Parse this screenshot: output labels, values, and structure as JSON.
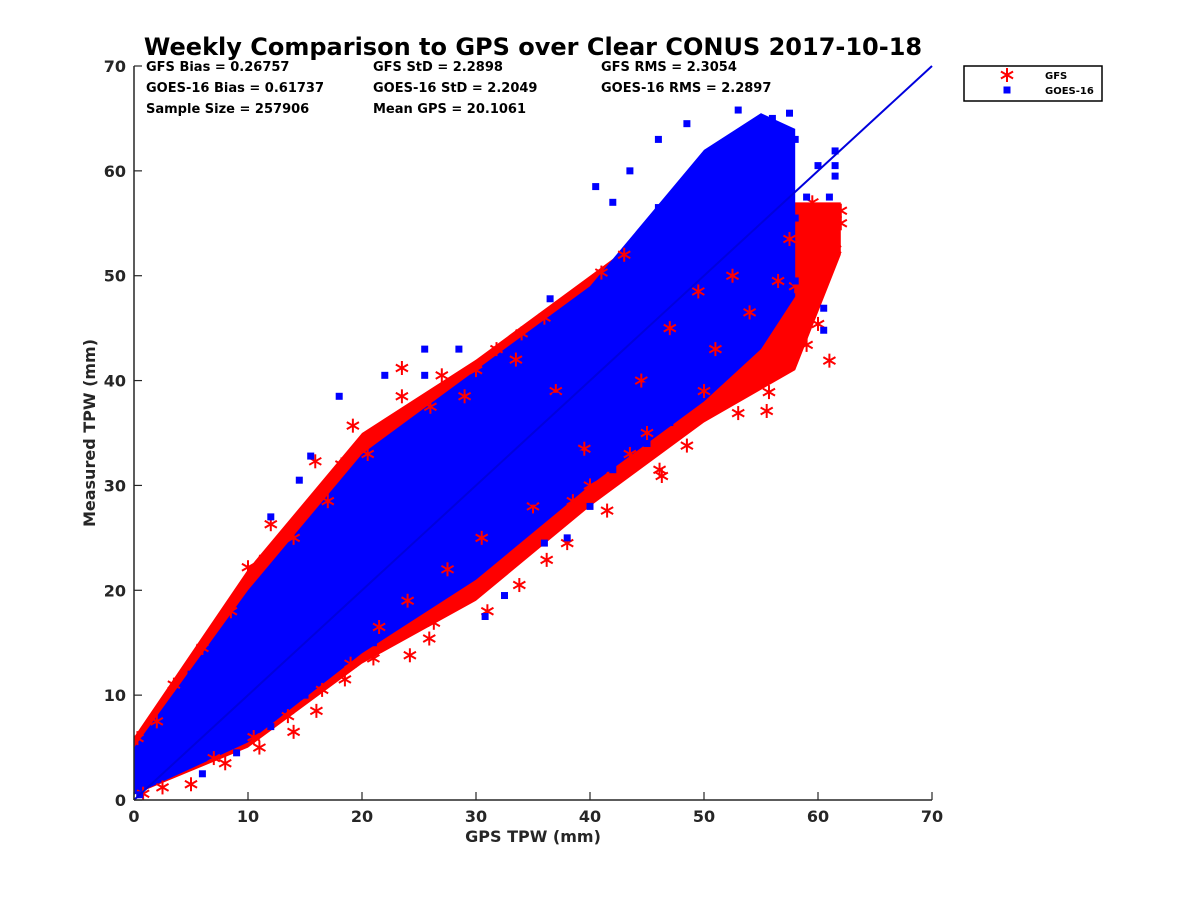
{
  "chart_data": {
    "type": "scatter",
    "title": "Weekly Comparison to GPS over Clear CONUS 2017-10-18",
    "xlabel": "GPS TPW (mm)",
    "ylabel": "Measured TPW (mm)",
    "xlim": [
      0,
      70
    ],
    "ylim": [
      0,
      70
    ],
    "xticks": [
      "0",
      "10",
      "20",
      "30",
      "40",
      "50",
      "60",
      "70"
    ],
    "yticks": [
      "0",
      "10",
      "20",
      "30",
      "40",
      "50",
      "60",
      "70"
    ],
    "grid": false,
    "legend_position": "top-right outside plot",
    "stats": [
      [
        "GFS Bias = 0.26757",
        "GFS StD = 2.2898",
        "GFS RMS = 2.3054"
      ],
      [
        "GOES-16 Bias = 0.61737",
        "GOES-16 StD = 2.2049",
        "GOES-16 RMS = 2.2897"
      ],
      [
        "Sample Size = 257906",
        "Mean GPS = 20.1061"
      ]
    ],
    "reference_line": {
      "x": [
        0,
        70
      ],
      "y": [
        0,
        70
      ],
      "color": "#0000dd"
    },
    "series": [
      {
        "name": "GFS",
        "marker": "asterisk",
        "color": "#ff0000",
        "points": [
          [
            0.3,
            5.9
          ],
          [
            0.8,
            0.6
          ],
          [
            2.5,
            1.2
          ],
          [
            5.0,
            1.5
          ],
          [
            8.0,
            3.5
          ],
          [
            11.0,
            5.0
          ],
          [
            14.0,
            6.5
          ],
          [
            16.0,
            8.5
          ],
          [
            18.5,
            11.5
          ],
          [
            21.0,
            13.5
          ],
          [
            24.2,
            13.8
          ],
          [
            25.9,
            15.4
          ],
          [
            26.3,
            16.9
          ],
          [
            28.2,
            18.9
          ],
          [
            31.0,
            18.0
          ],
          [
            33.8,
            20.5
          ],
          [
            36.2,
            22.9
          ],
          [
            38.0,
            24.5
          ],
          [
            41.5,
            27.6
          ],
          [
            42.0,
            30.9
          ],
          [
            46.1,
            31.5
          ],
          [
            46.3,
            30.9
          ],
          [
            48.5,
            33.8
          ],
          [
            53.0,
            36.9
          ],
          [
            55.5,
            37.1
          ],
          [
            55.7,
            38.9
          ],
          [
            57.0,
            41.8
          ],
          [
            58.0,
            43.0
          ],
          [
            59.0,
            43.4
          ],
          [
            61.0,
            41.9
          ],
          [
            60.0,
            45.4
          ],
          [
            62.0,
            55.0
          ],
          [
            62.0,
            56.2
          ],
          [
            61.5,
            52.5
          ],
          [
            60.5,
            51.0
          ],
          [
            58.0,
            49.0
          ],
          [
            12.0,
            26.3
          ],
          [
            10.0,
            22.2
          ],
          [
            11.5,
            23.0
          ],
          [
            15.9,
            32.3
          ],
          [
            18.2,
            32.0
          ],
          [
            19.2,
            35.7
          ],
          [
            23.5,
            41.2
          ],
          [
            23.5,
            38.5
          ],
          [
            27.0,
            40.5
          ],
          [
            30.0,
            41.0
          ],
          [
            31.8,
            43.0
          ],
          [
            34.0,
            44.5
          ],
          [
            36.0,
            46.0
          ],
          [
            41.0,
            50.3
          ],
          [
            43.0,
            52.0
          ],
          [
            2.0,
            7.5
          ],
          [
            3.5,
            11.0
          ],
          [
            6.0,
            14.5
          ],
          [
            8.5,
            18.0
          ],
          [
            14.0,
            25.0
          ],
          [
            17.0,
            28.5
          ],
          [
            20.5,
            33.0
          ],
          [
            26.0,
            37.5
          ],
          [
            29.0,
            38.5
          ],
          [
            33.5,
            42.0
          ],
          [
            37.0,
            39.0
          ],
          [
            39.5,
            33.5
          ],
          [
            35.0,
            28.0
          ],
          [
            30.5,
            25.0
          ],
          [
            27.5,
            22.0
          ],
          [
            24.0,
            19.0
          ],
          [
            21.5,
            16.5
          ],
          [
            19.0,
            13.0
          ],
          [
            16.5,
            10.5
          ],
          [
            13.5,
            8.0
          ],
          [
            10.5,
            6.0
          ],
          [
            7.0,
            4.0
          ],
          [
            44.5,
            40.0
          ],
          [
            47.0,
            45.0
          ],
          [
            49.5,
            48.5
          ],
          [
            51.0,
            43.0
          ],
          [
            52.5,
            50.0
          ],
          [
            54.0,
            46.5
          ],
          [
            56.5,
            49.5
          ],
          [
            57.5,
            53.5
          ],
          [
            59.5,
            57.0
          ],
          [
            55.0,
            42.0
          ],
          [
            50.0,
            39.0
          ],
          [
            45.0,
            35.0
          ],
          [
            43.5,
            33.0
          ],
          [
            40.0,
            30.0
          ],
          [
            38.5,
            28.5
          ]
        ]
      },
      {
        "name": "GOES-16",
        "marker": "square",
        "color": "#0000ff",
        "points": [
          [
            0.5,
            0.5
          ],
          [
            1.0,
            2.0
          ],
          [
            2.0,
            3.0
          ],
          [
            3.0,
            3.5
          ],
          [
            4.0,
            4.5
          ],
          [
            5.0,
            6.0
          ],
          [
            6.0,
            7.0
          ],
          [
            7.0,
            8.5
          ],
          [
            8.0,
            9.5
          ],
          [
            9.0,
            10.5
          ],
          [
            10.0,
            11.5
          ],
          [
            11.0,
            12.5
          ],
          [
            12.0,
            13.5
          ],
          [
            13.0,
            14.5
          ],
          [
            14.0,
            15.5
          ],
          [
            15.0,
            16.5
          ],
          [
            16.0,
            17.5
          ],
          [
            17.0,
            18.5
          ],
          [
            18.0,
            19.5
          ],
          [
            19.0,
            20.5
          ],
          [
            20.0,
            21.5
          ],
          [
            21.0,
            22.5
          ],
          [
            22.0,
            23.5
          ],
          [
            23.0,
            24.5
          ],
          [
            24.0,
            25.5
          ],
          [
            25.0,
            26.5
          ],
          [
            26.0,
            27.5
          ],
          [
            27.0,
            28.5
          ],
          [
            28.0,
            29.5
          ],
          [
            29.0,
            30.5
          ],
          [
            30.0,
            31.5
          ],
          [
            31.0,
            32.5
          ],
          [
            32.0,
            33.5
          ],
          [
            33.0,
            34.5
          ],
          [
            34.0,
            35.5
          ],
          [
            35.0,
            36.5
          ],
          [
            36.0,
            37.5
          ],
          [
            37.0,
            38.5
          ],
          [
            38.0,
            39.5
          ],
          [
            39.0,
            40.5
          ],
          [
            40.0,
            41.5
          ],
          [
            41.0,
            42.5
          ],
          [
            42.0,
            43.5
          ],
          [
            43.0,
            44.5
          ],
          [
            44.0,
            45.5
          ],
          [
            45.0,
            46.5
          ],
          [
            46.0,
            47.5
          ],
          [
            47.0,
            48.5
          ],
          [
            48.0,
            49.5
          ],
          [
            49.0,
            50.5
          ],
          [
            50.0,
            51.5
          ],
          [
            51.0,
            52.5
          ],
          [
            52.0,
            54.0
          ],
          [
            53.0,
            55.0
          ],
          [
            54.0,
            56.5
          ],
          [
            55.0,
            58.0
          ],
          [
            56.0,
            60.0
          ],
          [
            57.0,
            62.5
          ],
          [
            53.0,
            65.8
          ],
          [
            54.5,
            64.5
          ],
          [
            56.0,
            65.0
          ],
          [
            57.5,
            65.5
          ],
          [
            61.0,
            57.5
          ],
          [
            61.5,
            61.9
          ],
          [
            61.5,
            60.5
          ],
          [
            61.5,
            59.5
          ],
          [
            60.0,
            60.5
          ],
          [
            60.5,
            46.9
          ],
          [
            60.5,
            44.8
          ],
          [
            46.0,
            63.0
          ],
          [
            48.5,
            64.5
          ],
          [
            43.5,
            60.0
          ],
          [
            40.5,
            58.5
          ],
          [
            42.0,
            57.0
          ],
          [
            46.0,
            56.5
          ],
          [
            36.5,
            47.8
          ],
          [
            18.0,
            38.5
          ],
          [
            22.0,
            40.5
          ],
          [
            25.5,
            40.5
          ],
          [
            25.5,
            43.0
          ],
          [
            28.5,
            43.0
          ],
          [
            14.5,
            30.5
          ],
          [
            15.5,
            32.8
          ],
          [
            12.0,
            27.0
          ],
          [
            30.8,
            17.5
          ],
          [
            32.5,
            19.5
          ],
          [
            36.0,
            24.5
          ],
          [
            38.0,
            25.0
          ],
          [
            40.0,
            28.0
          ],
          [
            42.0,
            31.5
          ],
          [
            45.0,
            34.0
          ],
          [
            47.0,
            36.0
          ],
          [
            49.0,
            39.0
          ],
          [
            51.0,
            41.0
          ],
          [
            54.0,
            44.0
          ],
          [
            56.0,
            47.0
          ],
          [
            58.0,
            49.5
          ],
          [
            5.0,
            12.0
          ],
          [
            8.0,
            15.0
          ],
          [
            11.0,
            18.0
          ],
          [
            3.0,
            8.0
          ],
          [
            6.0,
            2.5
          ],
          [
            9.0,
            4.5
          ],
          [
            12.0,
            7.0
          ],
          [
            15.0,
            10.0
          ],
          [
            18.0,
            13.0
          ],
          [
            21.0,
            15.0
          ],
          [
            24.0,
            18.0
          ],
          [
            27.0,
            21.0
          ],
          [
            30.0,
            24.0
          ],
          [
            33.0,
            26.5
          ],
          [
            35.0,
            28.5
          ],
          [
            37.0,
            31.0
          ],
          [
            39.0,
            33.0
          ],
          [
            41.0,
            35.5
          ],
          [
            43.0,
            37.5
          ],
          [
            45.0,
            39.5
          ],
          [
            47.0,
            41.5
          ],
          [
            49.0,
            43.5
          ],
          [
            51.0,
            45.5
          ],
          [
            53.0,
            47.5
          ],
          [
            55.0,
            50.0
          ],
          [
            57.0,
            52.5
          ],
          [
            58.0,
            55.5
          ],
          [
            59.0,
            57.5
          ],
          [
            7.0,
            13.5
          ],
          [
            10.0,
            16.5
          ],
          [
            13.0,
            20.5
          ],
          [
            16.0,
            23.5
          ],
          [
            19.0,
            26.5
          ],
          [
            22.0,
            29.5
          ],
          [
            25.0,
            32.5
          ],
          [
            28.0,
            35.0
          ],
          [
            31.0,
            37.5
          ],
          [
            34.0,
            40.5
          ],
          [
            37.0,
            43.5
          ],
          [
            40.0,
            46.0
          ],
          [
            43.0,
            49.5
          ],
          [
            46.0,
            52.5
          ],
          [
            49.0,
            55.5
          ],
          [
            52.0,
            58.5
          ],
          [
            55.0,
            61.5
          ],
          [
            58.0,
            63.0
          ]
        ]
      }
    ]
  }
}
